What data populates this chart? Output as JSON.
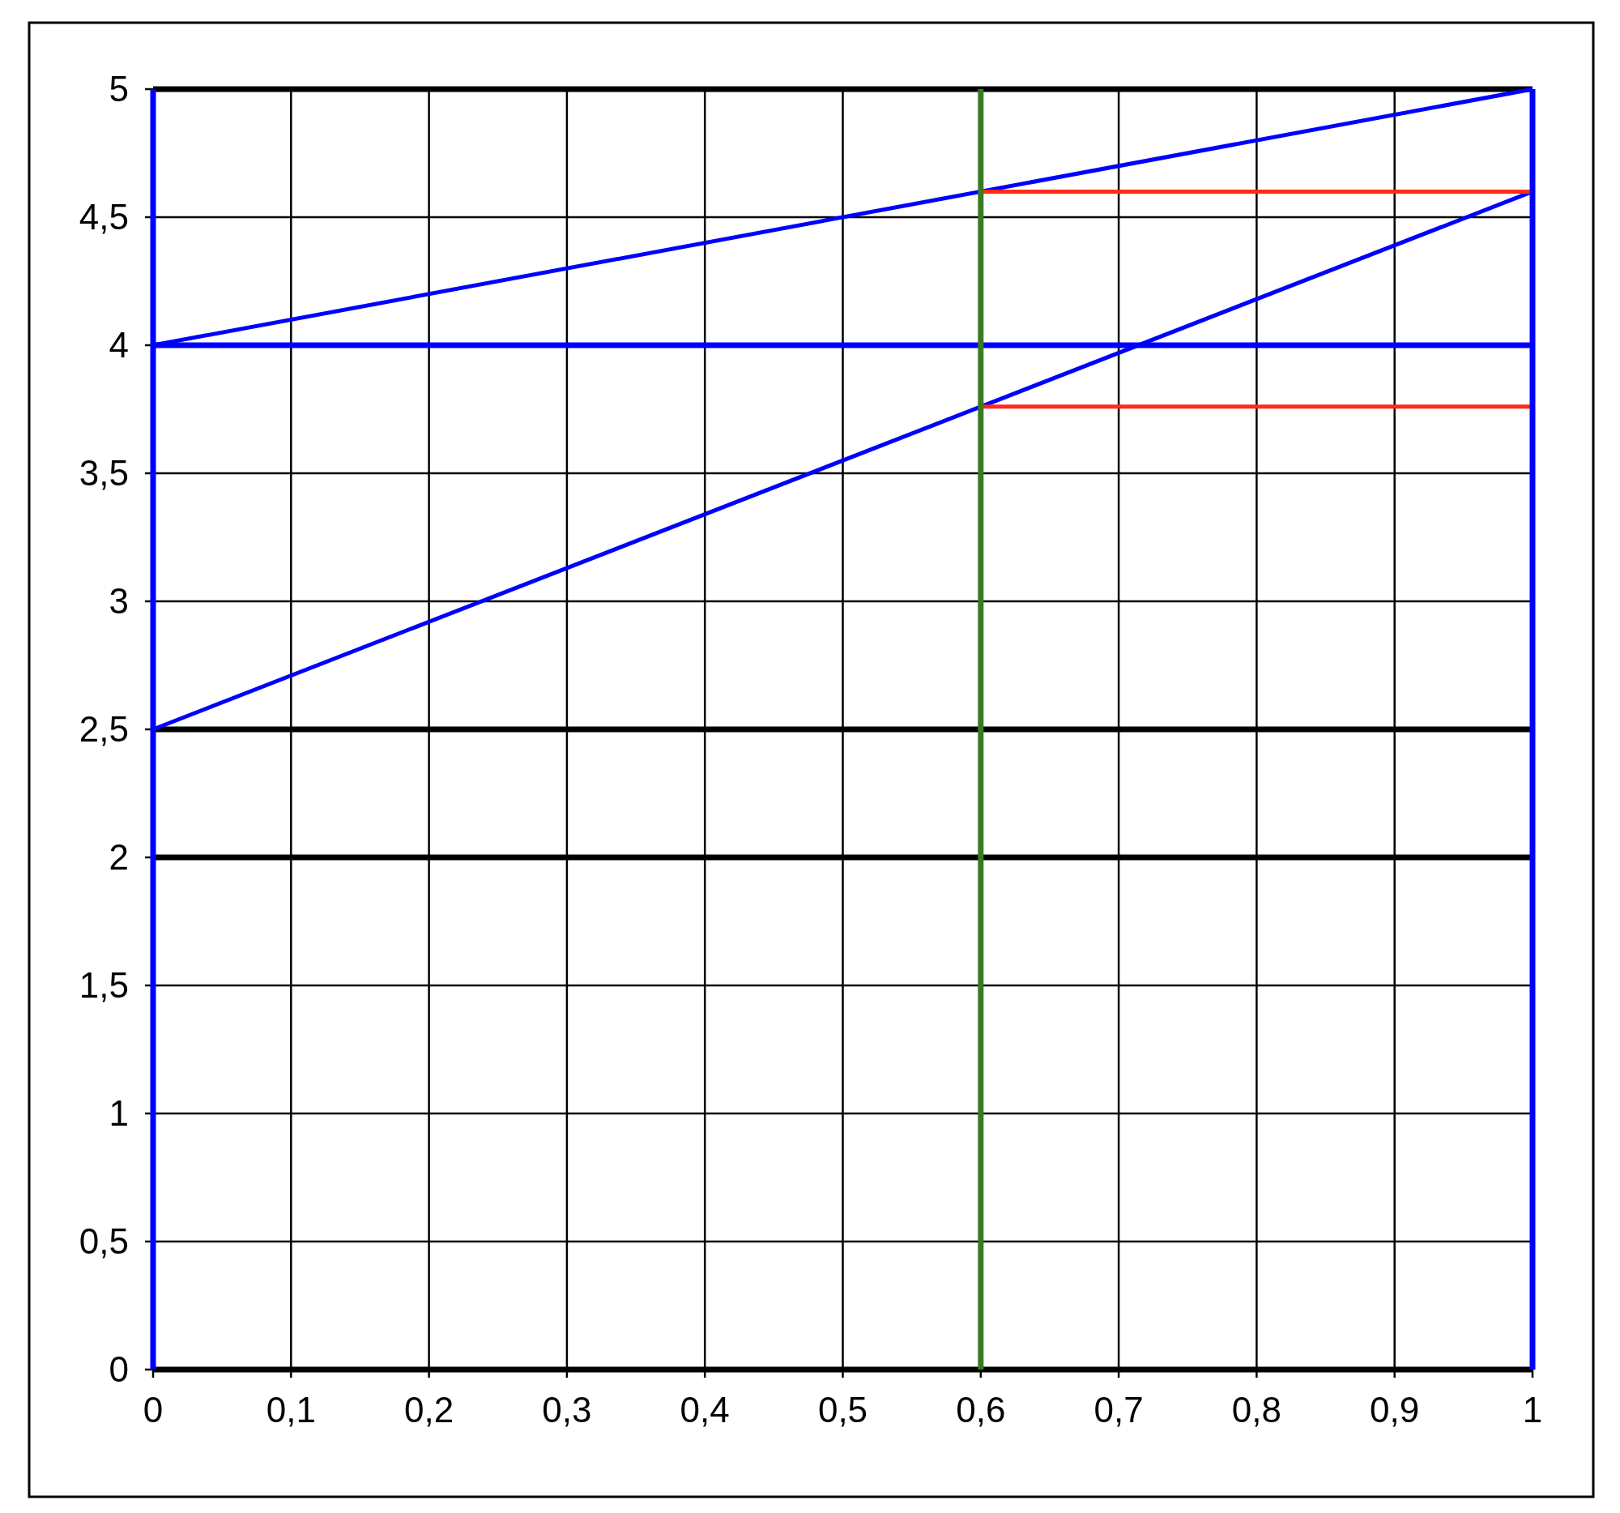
{
  "chart_data": {
    "type": "line",
    "xlim": [
      0,
      1
    ],
    "ylim": [
      0,
      5
    ],
    "xticks": [
      0,
      {
        "value": 0.1,
        "label": "0,1"
      },
      {
        "value": 0.2,
        "label": "0,2"
      },
      {
        "value": 0.3,
        "label": "0,3"
      },
      {
        "value": 0.4,
        "label": "0,4"
      },
      {
        "value": 0.5,
        "label": "0,5"
      },
      {
        "value": 0.6,
        "label": "0,6"
      },
      {
        "value": 0.7,
        "label": "0,7"
      },
      {
        "value": 0.8,
        "label": "0,8"
      },
      {
        "value": 0.9,
        "label": "0,9"
      },
      1
    ],
    "yticks": [
      0,
      {
        "value": 0.5,
        "label": "0,5"
      },
      1,
      {
        "value": 1.5,
        "label": "1,5"
      },
      2,
      {
        "value": 2.5,
        "label": "2,5"
      },
      3,
      {
        "value": 3.5,
        "label": "3,5"
      },
      4,
      {
        "value": 4.5,
        "label": "4,5"
      },
      5
    ],
    "grid": true,
    "marker": "none",
    "line_style": "solid",
    "series": [
      {
        "color": "#000000",
        "x": [
          0,
          1
        ],
        "values": [
          5,
          5
        ]
      },
      {
        "color": "#000000",
        "x": [
          0,
          1
        ],
        "values": [
          2.5,
          2.5
        ]
      },
      {
        "color": "#000000",
        "x": [
          0,
          1
        ],
        "values": [
          2,
          2
        ]
      },
      {
        "color": "#000000",
        "x": [
          0,
          1
        ],
        "values": [
          0,
          0
        ]
      },
      {
        "color": "#0000ff",
        "x": [
          0,
          1
        ],
        "values": [
          4,
          4
        ]
      },
      {
        "color": "#0000ff",
        "x": [
          0,
          1
        ],
        "values": [
          4,
          5
        ]
      },
      {
        "color": "#0000ff",
        "x": [
          0,
          1
        ],
        "values": [
          2.5,
          4.6
        ]
      },
      {
        "color": "#ff2a1a",
        "x": [
          0.6,
          1
        ],
        "values": [
          4.6,
          4.6
        ]
      },
      {
        "color": "#ff2a1a",
        "x": [
          0.6,
          1
        ],
        "values": [
          3.76,
          3.76
        ]
      }
    ],
    "ref_lines": [
      {
        "axis": "x",
        "value": 0,
        "color": "#0000ff"
      },
      {
        "axis": "x",
        "value": 1,
        "color": "#0000ff"
      },
      {
        "axis": "x",
        "value": 0.6,
        "color": "#3a7a23"
      }
    ]
  }
}
